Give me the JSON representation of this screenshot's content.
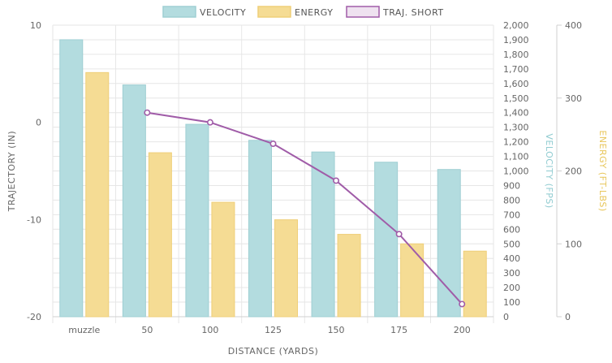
{
  "chart_data": {
    "type": "bar",
    "title": "",
    "xlabel": "DISTANCE (YARDS)",
    "categories": [
      "muzzle",
      "50",
      "100",
      "125",
      "150",
      "175",
      "200"
    ],
    "series": [
      {
        "name": "VELOCITY",
        "kind": "bar",
        "axis": "velocity",
        "color": "#b3dcdf",
        "border": "#9fcfd3",
        "values": [
          1900,
          1590,
          1320,
          1210,
          1130,
          1060,
          1010
        ]
      },
      {
        "name": "ENERGY",
        "kind": "bar",
        "axis": "energy",
        "color": "#f5dc94",
        "border": "#efcf78",
        "values": [
          335,
          225,
          157,
          133,
          113,
          100,
          90
        ]
      },
      {
        "name": "TRAJ. SHORT",
        "kind": "line",
        "axis": "trajectory",
        "color": "#a05ca8",
        "values": [
          null,
          1,
          0,
          -2.2,
          -6,
          -11.5,
          -18.7
        ]
      }
    ],
    "axes": {
      "trajectory": {
        "label": "TRAJECTORY (IN)",
        "min": -20,
        "max": 10,
        "ticks": [
          10,
          0,
          -10,
          -20
        ],
        "color": "#666666"
      },
      "velocity": {
        "label": "VELOCITY (FPS)",
        "min": 0,
        "max": 2000,
        "ticks": [
          "2,000",
          "1,900",
          "1,800",
          "1,700",
          "1,600",
          "1,500",
          "1,400",
          "1,300",
          "1,200",
          "1,100",
          "1,000",
          "900",
          "800",
          "700",
          "600",
          "500",
          "400",
          "300",
          "200",
          "100",
          "0"
        ],
        "color": "#8fcbd0"
      },
      "energy": {
        "label": "ENERGY (FT-LBS)",
        "min": 0,
        "max": 400,
        "ticks": [
          400,
          300,
          200,
          100,
          0
        ],
        "color": "#e8c65a"
      }
    },
    "legend_position": "top-center",
    "grid": true
  }
}
